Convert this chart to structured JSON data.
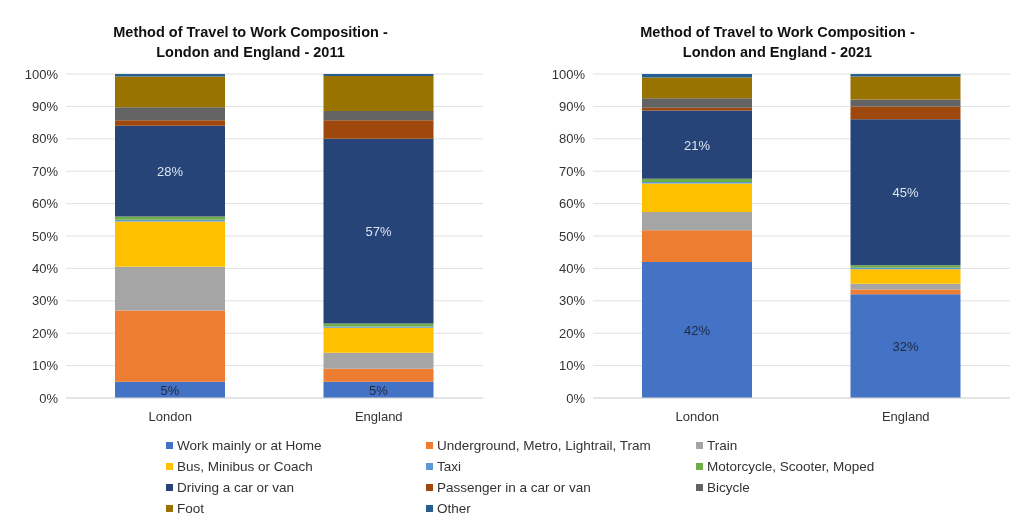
{
  "chart_data": [
    {
      "type": "bar",
      "stacked": true,
      "title": "Method of Travel to Work Composition - London and England - 2011",
      "categories": [
        "London",
        "England"
      ],
      "ylim": [
        0,
        100
      ],
      "yticks": [
        {
          "value": 0,
          "label": "0%"
        },
        {
          "value": 10,
          "label": "10%"
        },
        {
          "value": 20,
          "label": "20%"
        },
        {
          "value": 30,
          "label": "30%"
        },
        {
          "value": 40,
          "label": "40%"
        },
        {
          "value": 50,
          "label": "50%"
        },
        {
          "value": 60,
          "label": "60%"
        },
        {
          "value": 70,
          "label": "70%"
        },
        {
          "value": 80,
          "label": "80%"
        },
        {
          "value": 90,
          "label": "90%"
        },
        {
          "value": 100,
          "label": "100%"
        }
      ],
      "grid": "y",
      "legend": "bottom",
      "series": [
        {
          "name": "Work mainly or at Home",
          "color": "#4472c4",
          "values": [
            5,
            5
          ],
          "value_labels": [
            "5%",
            "5%"
          ]
        },
        {
          "name": "Underground, Metro, Lightrail, Tram",
          "color": "#ed7d31",
          "values": [
            22,
            4
          ]
        },
        {
          "name": "Train",
          "color": "#a5a5a5",
          "values": [
            13.5,
            5
          ]
        },
        {
          "name": "Bus, Minibus or Coach",
          "color": "#ffc000",
          "values": [
            14,
            7.7
          ]
        },
        {
          "name": "Taxi",
          "color": "#5b9bd5",
          "values": [
            0.5,
            0.4
          ]
        },
        {
          "name": "Motorcycle, Scooter, Moped",
          "color": "#70ad47",
          "values": [
            1,
            0.9
          ]
        },
        {
          "name": "Driving a car or van",
          "color": "#264478",
          "values": [
            28,
            57
          ],
          "value_labels": [
            "28%",
            "57%"
          ]
        },
        {
          "name": "Passenger in a car or van",
          "color": "#9e480e",
          "values": [
            1.7,
            5.7
          ]
        },
        {
          "name": "Bicycle",
          "color": "#636363",
          "values": [
            4,
            2.9
          ]
        },
        {
          "name": "Foot",
          "color": "#997300",
          "values": [
            9.5,
            10.8
          ]
        },
        {
          "name": "Other",
          "color": "#255e91",
          "values": [
            0.8,
            0.6
          ]
        }
      ]
    },
    {
      "type": "bar",
      "stacked": true,
      "title": "Method of Travel to Work Composition - London and England - 2021",
      "categories": [
        "London",
        "England"
      ],
      "ylim": [
        0,
        100
      ],
      "yticks": [
        {
          "value": 0,
          "label": "0%"
        },
        {
          "value": 10,
          "label": "10%"
        },
        {
          "value": 20,
          "label": "20%"
        },
        {
          "value": 30,
          "label": "30%"
        },
        {
          "value": 40,
          "label": "40%"
        },
        {
          "value": 50,
          "label": "50%"
        },
        {
          "value": 60,
          "label": "60%"
        },
        {
          "value": 70,
          "label": "70%"
        },
        {
          "value": 80,
          "label": "80%"
        },
        {
          "value": 90,
          "label": "90%"
        },
        {
          "value": 100,
          "label": "100%"
        }
      ],
      "grid": "y",
      "series": [
        {
          "color": "#4472c4",
          "values": [
            42,
            32
          ],
          "value_labels": [
            "42%",
            "32%"
          ]
        },
        {
          "color": "#ed7d31",
          "values": [
            9.8,
            1.5
          ]
        },
        {
          "color": "#a5a5a5",
          "values": [
            5.6,
            1.8
          ]
        },
        {
          "color": "#ffc000",
          "values": [
            8.8,
            4.4
          ]
        },
        {
          "color": "#5b9bd5",
          "values": [
            0.5,
            0.5
          ]
        },
        {
          "color": "#70ad47",
          "values": [
            1,
            0.8
          ]
        },
        {
          "color": "#264478",
          "values": [
            21,
            45
          ],
          "value_labels": [
            "21%",
            "45%"
          ]
        },
        {
          "color": "#9e480e",
          "values": [
            0.9,
            4
          ]
        },
        {
          "color": "#636363",
          "values": [
            2.9,
            2.1
          ]
        },
        {
          "color": "#997300",
          "values": [
            6.4,
            7.1
          ]
        },
        {
          "color": "#255e91",
          "values": [
            1.1,
            0.8
          ]
        }
      ]
    }
  ]
}
